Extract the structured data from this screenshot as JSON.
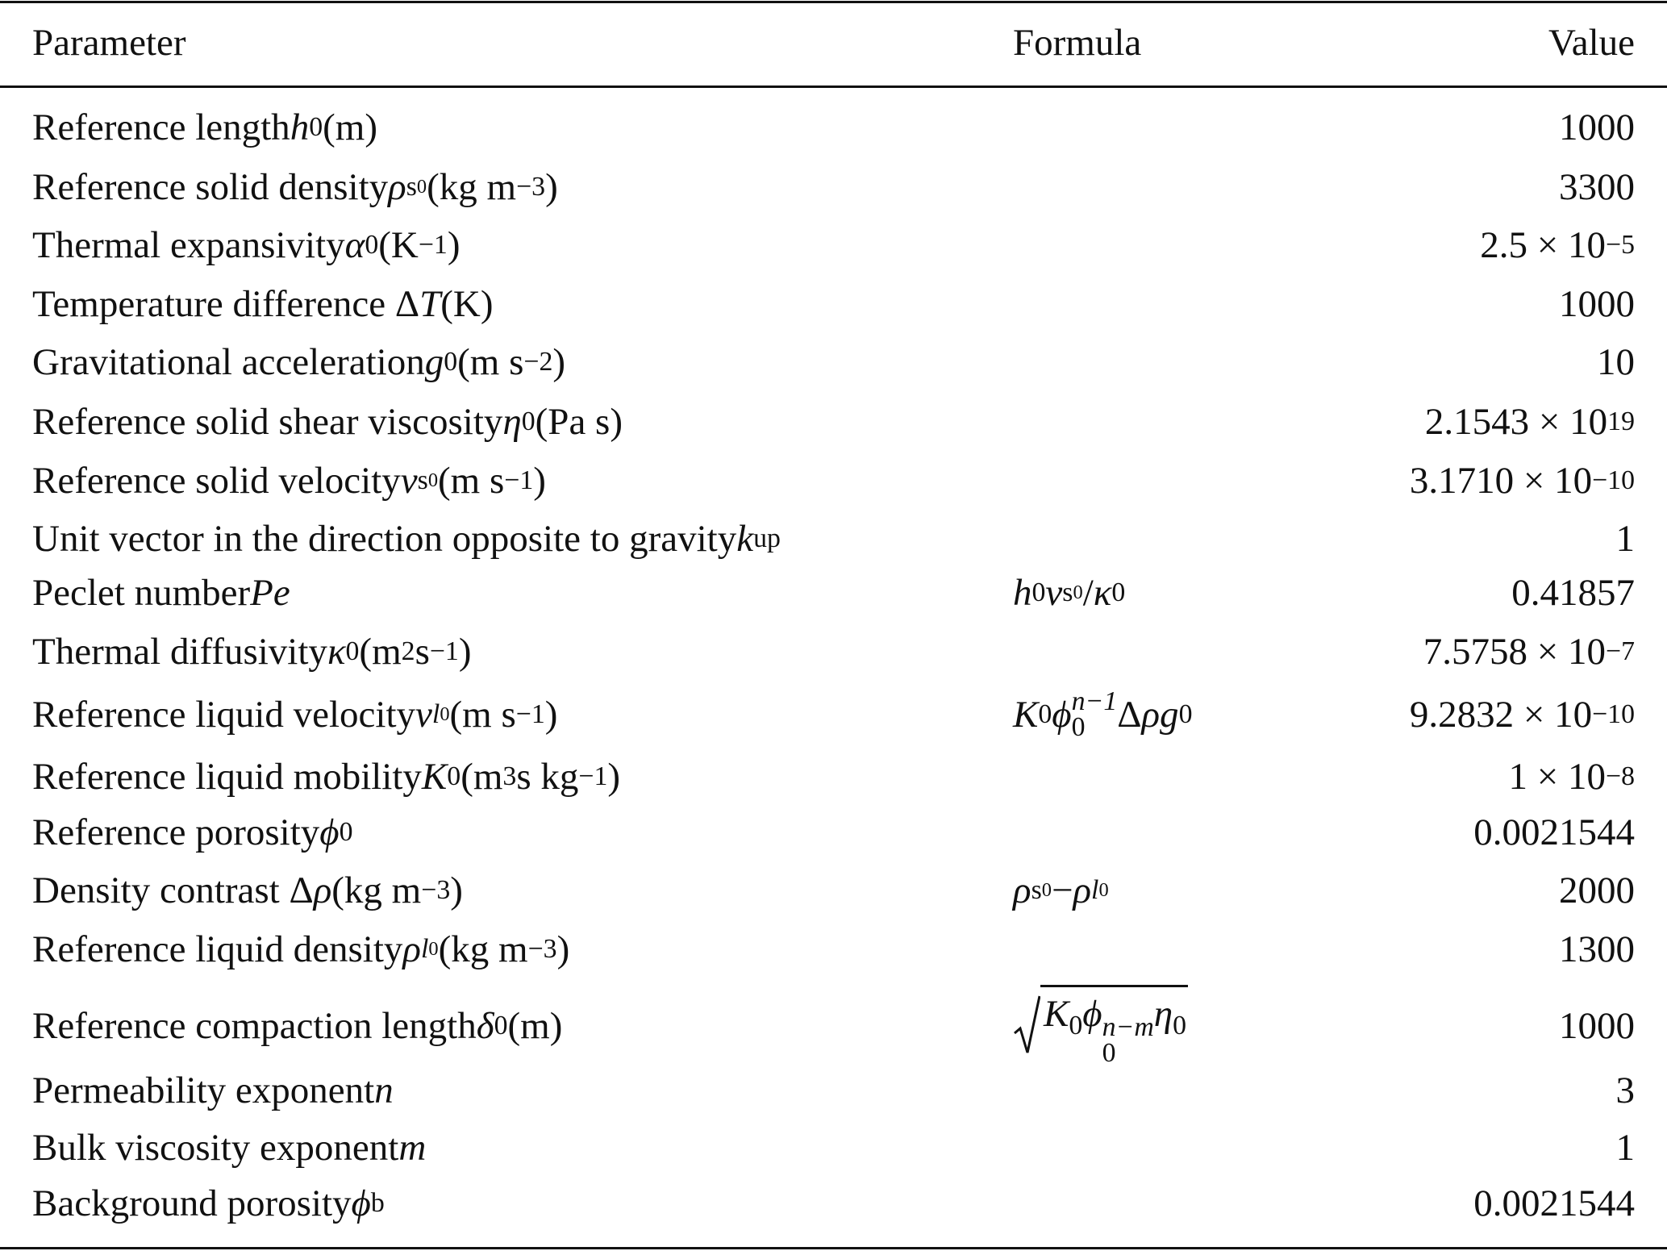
{
  "table": {
    "header": [
      "Parameter",
      "Formula",
      "Value"
    ],
    "rows": [
      {
        "parameter": [
          "Reference length ",
          {
            "i": "h"
          },
          {
            "sub": "0"
          },
          " (m)"
        ],
        "value": "1000"
      },
      {
        "parameter": [
          "Reference solid density ",
          {
            "i": "ρ"
          },
          {
            "sub": "s"
          },
          {
            "ss": "0"
          },
          " (kg m",
          {
            "sup": "−3"
          },
          ")"
        ],
        "value": "3300"
      },
      {
        "parameter": [
          "Thermal expansivity ",
          {
            "i": "α"
          },
          {
            "sub": "0"
          },
          " (K",
          {
            "sup": "−1"
          },
          ")"
        ],
        "value": [
          "2.5 × 10",
          {
            "sup": "−5"
          }
        ]
      },
      {
        "parameter": [
          "Temperature difference Δ",
          {
            "i": "T"
          },
          " (K)"
        ],
        "value": "1000"
      },
      {
        "parameter": [
          "Gravitational acceleration ",
          {
            "i": "g"
          },
          {
            "sub": "0"
          },
          " (m s",
          {
            "sup": "−2"
          },
          ")"
        ],
        "value": "10"
      },
      {
        "parameter": [
          "Reference solid shear viscosity ",
          {
            "i": "η"
          },
          {
            "sub": "0"
          },
          " (Pa s)"
        ],
        "value": [
          "2.1543 × 10",
          {
            "sup": "19"
          }
        ]
      },
      {
        "parameter": [
          "Reference solid velocity ",
          {
            "i": "v"
          },
          {
            "sub": "s"
          },
          {
            "ss": "0"
          },
          " (m s",
          {
            "sup": "−1"
          },
          ")"
        ],
        "value": [
          "3.1710 × 10",
          {
            "sup": "−10"
          }
        ]
      },
      {
        "parameter": [
          "Unit vector in the direction opposite to gravity ",
          {
            "i": "k"
          },
          {
            "sub": "up"
          }
        ],
        "value": "1"
      },
      {
        "parameter": [
          "Peclet number ",
          {
            "i": "Pe"
          }
        ],
        "formula": [
          {
            "i": "h"
          },
          {
            "sub": "0"
          },
          {
            "i": "v"
          },
          {
            "sub": "s"
          },
          {
            "ss": "0"
          },
          "/",
          {
            "i": "κ"
          },
          {
            "sub": "0"
          }
        ],
        "value": "0.41857"
      },
      {
        "parameter": [
          "Thermal diffusivity ",
          {
            "i": "κ"
          },
          {
            "sub": "0"
          },
          " (m",
          {
            "sup": "2"
          },
          " s",
          {
            "sup": "−1"
          },
          ")"
        ],
        "value": [
          "7.5758 × 10",
          {
            "sup": "−7"
          }
        ]
      },
      {
        "parameter": [
          "Reference liquid velocity ",
          {
            "i": "v"
          },
          {
            "subi": "l"
          },
          {
            "ss": "0"
          },
          " (m s",
          {
            "sup": "−1"
          },
          ")"
        ],
        "formula": [
          {
            "i": "K"
          },
          {
            "sub": "0"
          },
          {
            "i": "ϕ"
          },
          {
            "supi": "n−1",
            "sub": "0"
          },
          "Δ",
          {
            "i": "ρg"
          },
          {
            "sub": "0"
          }
        ],
        "value": [
          "9.2832 × 10",
          {
            "sup": "−10"
          }
        ]
      },
      {
        "parameter": [
          "Reference liquid mobility ",
          {
            "i": "K"
          },
          {
            "sub": "0"
          },
          " (m",
          {
            "sup": "3"
          },
          " s kg",
          {
            "sup": "−1"
          },
          ")"
        ],
        "value": [
          "1 × 10",
          {
            "sup": "−8"
          }
        ]
      },
      {
        "parameter": [
          "Reference porosity ",
          {
            "i": "ϕ"
          },
          {
            "sub": "0"
          }
        ],
        "value": "0.0021544"
      },
      {
        "parameter": [
          "Density contrast Δ",
          {
            "i": "ρ"
          },
          " (kg m",
          {
            "sup": "−3"
          },
          ")"
        ],
        "formula": [
          {
            "i": "ρ"
          },
          {
            "sub": "s"
          },
          {
            "ss": "0"
          },
          " − ",
          {
            "i": "ρ"
          },
          {
            "subi": "l"
          },
          {
            "ss": "0"
          }
        ],
        "value": "2000"
      },
      {
        "parameter": [
          "Reference liquid density ",
          {
            "i": "ρ"
          },
          {
            "subi": "l"
          },
          {
            "ss": "0"
          },
          " (kg m",
          {
            "sup": "−3"
          },
          ")"
        ],
        "value": "1300"
      },
      {
        "parameter": [
          "Reference compaction length ",
          {
            "i": "δ"
          },
          {
            "sub": "0"
          },
          " (m)"
        ],
        "formula": [
          {
            "sqrt": [
              {
                "i": "K"
              },
              {
                "sub": "0"
              },
              {
                "i": "ϕ"
              },
              {
                "supi": "n−m",
                "sub": "0"
              },
              {
                "i": "η"
              },
              {
                "sub": "0"
              }
            ]
          }
        ],
        "value": "1000"
      },
      {
        "parameter": [
          "Permeability exponent ",
          {
            "i": "n"
          }
        ],
        "value": "3"
      },
      {
        "parameter": [
          "Bulk viscosity exponent ",
          {
            "i": "m"
          }
        ],
        "value": "1"
      },
      {
        "parameter": [
          "Background porosity ",
          {
            "i": "ϕ"
          },
          {
            "sub": "b"
          }
        ],
        "value": "0.0021544"
      }
    ]
  }
}
